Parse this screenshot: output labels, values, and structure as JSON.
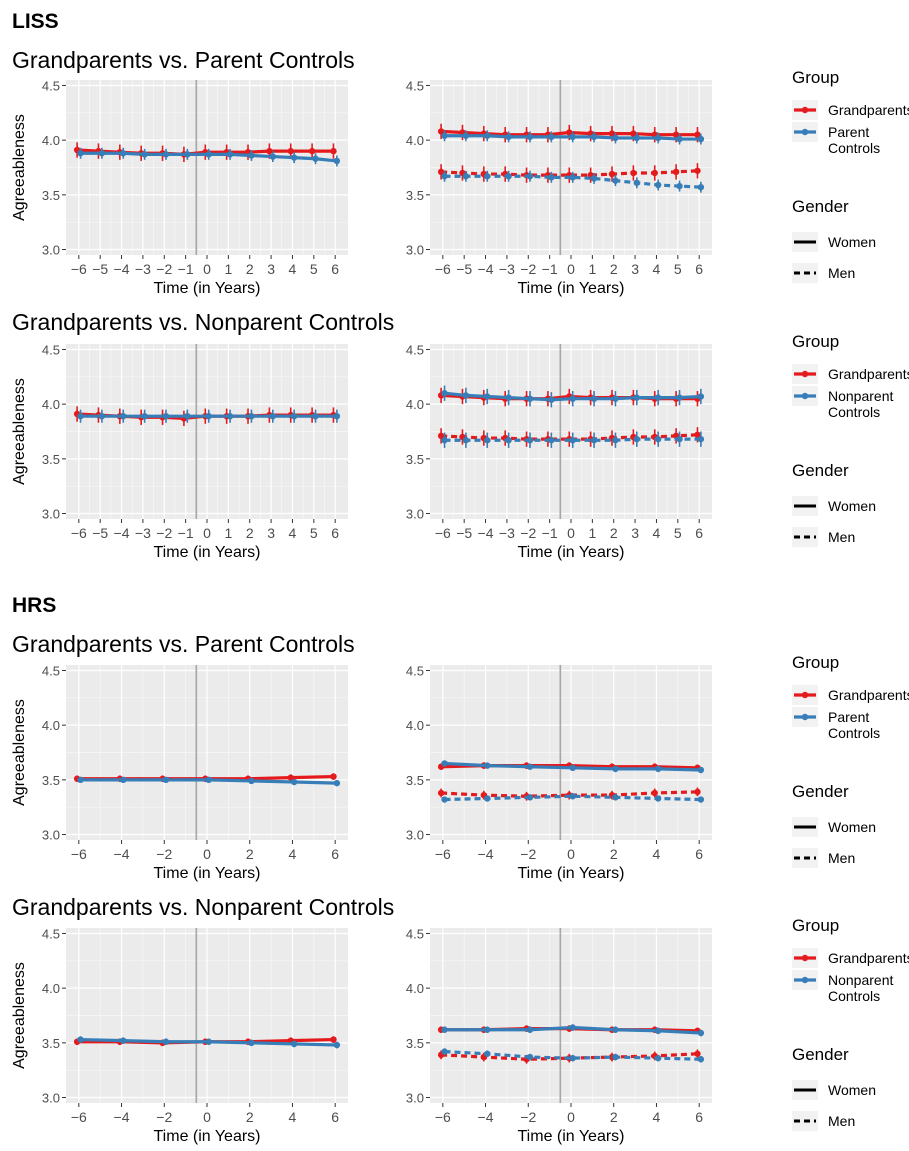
{
  "sections": [
    {
      "title": "LISS",
      "rows": [
        {
          "title": "Grandparents vs. Parent Controls",
          "legend": {
            "group_title": "Group",
            "group_items": [
              {
                "label_lines": [
                  "Grandparents"
                ],
                "color": "#E41A1C"
              },
              {
                "label_lines": [
                  "Parent",
                  "Controls"
                ],
                "color": "#377EB8"
              }
            ],
            "gender_title": "Gender",
            "gender_items": [
              {
                "label": "Women",
                "style": "solid"
              },
              {
                "label": "Men",
                "style": "dashed"
              }
            ]
          }
        },
        {
          "title": "Grandparents vs. Nonparent Controls",
          "legend": {
            "group_title": "Group",
            "group_items": [
              {
                "label_lines": [
                  "Grandparents"
                ],
                "color": "#E41A1C"
              },
              {
                "label_lines": [
                  "Nonparent",
                  "Controls"
                ],
                "color": "#377EB8"
              }
            ],
            "gender_title": "Gender",
            "gender_items": [
              {
                "label": "Women",
                "style": "solid"
              },
              {
                "label": "Men",
                "style": "dashed"
              }
            ]
          }
        }
      ]
    },
    {
      "title": "HRS",
      "rows": [
        {
          "title": "Grandparents vs. Parent Controls",
          "legend": {
            "group_title": "Group",
            "group_items": [
              {
                "label_lines": [
                  "Grandparents"
                ],
                "color": "#E41A1C"
              },
              {
                "label_lines": [
                  "Parent",
                  "Controls"
                ],
                "color": "#377EB8"
              }
            ],
            "gender_title": "Gender",
            "gender_items": [
              {
                "label": "Women",
                "style": "solid"
              },
              {
                "label": "Men",
                "style": "dashed"
              }
            ]
          }
        },
        {
          "title": "Grandparents vs. Nonparent Controls",
          "legend": {
            "group_title": "Group",
            "group_items": [
              {
                "label_lines": [
                  "Grandparents"
                ],
                "color": "#E41A1C"
              },
              {
                "label_lines": [
                  "Nonparent",
                  "Controls"
                ],
                "color": "#377EB8"
              }
            ],
            "gender_title": "Gender",
            "gender_items": [
              {
                "label": "Women",
                "style": "solid"
              },
              {
                "label": "Men",
                "style": "dashed"
              }
            ]
          }
        }
      ]
    }
  ],
  "colors": {
    "grandparents": "#E41A1C",
    "controls": "#377EB8",
    "panel_bg": "#EBEBEB",
    "grid": "#FFFFFF"
  },
  "chart_data": [
    {
      "type": "line",
      "section": "LISS",
      "row": "Grandparents vs. Parent Controls",
      "panel": "overall",
      "xlabel": "Time (in Years)",
      "ylabel": "Agreeableness",
      "ylim": [
        2.95,
        4.55
      ],
      "yticks": [
        3.0,
        3.5,
        4.0,
        4.5
      ],
      "x": [
        -6,
        -5,
        -4,
        -3,
        -2,
        -1,
        0,
        1,
        2,
        3,
        4,
        5,
        6
      ],
      "xticks": [
        -6,
        -5,
        -4,
        -3,
        -2,
        -1,
        0,
        1,
        2,
        3,
        4,
        5,
        6
      ],
      "event_line": true,
      "series": [
        {
          "name": "Grandparents",
          "style": "solid",
          "color": "#E41A1C",
          "values": [
            3.91,
            3.9,
            3.89,
            3.88,
            3.88,
            3.87,
            3.89,
            3.89,
            3.89,
            3.9,
            3.9,
            3.9,
            3.9
          ],
          "err": 0.07
        },
        {
          "name": "Parent Controls",
          "style": "solid",
          "color": "#377EB8",
          "values": [
            3.88,
            3.88,
            3.88,
            3.87,
            3.87,
            3.87,
            3.87,
            3.87,
            3.86,
            3.85,
            3.84,
            3.83,
            3.81
          ],
          "err": 0.05
        }
      ]
    },
    {
      "type": "line",
      "section": "LISS",
      "row": "Grandparents vs. Parent Controls",
      "panel": "by-gender",
      "xlabel": "Time (in Years)",
      "ylabel": "",
      "ylim": [
        2.95,
        4.55
      ],
      "yticks": [
        3.0,
        3.5,
        4.0,
        4.5
      ],
      "x": [
        -6,
        -5,
        -4,
        -3,
        -2,
        -1,
        0,
        1,
        2,
        3,
        4,
        5,
        6
      ],
      "xticks": [
        -6,
        -5,
        -4,
        -3,
        -2,
        -1,
        0,
        1,
        2,
        3,
        4,
        5,
        6
      ],
      "event_line": true,
      "series": [
        {
          "name": "Grandparents",
          "gender": "Women",
          "style": "solid",
          "color": "#E41A1C",
          "values": [
            4.08,
            4.07,
            4.06,
            4.05,
            4.05,
            4.05,
            4.07,
            4.06,
            4.06,
            4.06,
            4.05,
            4.05,
            4.05
          ],
          "err": 0.07
        },
        {
          "name": "Parent Controls",
          "gender": "Women",
          "style": "solid",
          "color": "#377EB8",
          "values": [
            4.04,
            4.04,
            4.04,
            4.03,
            4.03,
            4.03,
            4.03,
            4.03,
            4.02,
            4.02,
            4.02,
            4.01,
            4.01
          ],
          "err": 0.05
        },
        {
          "name": "Grandparents",
          "gender": "Men",
          "style": "dashed",
          "color": "#E41A1C",
          "values": [
            3.71,
            3.7,
            3.69,
            3.69,
            3.68,
            3.68,
            3.68,
            3.68,
            3.69,
            3.7,
            3.7,
            3.71,
            3.72
          ],
          "err": 0.07
        },
        {
          "name": "Parent Controls",
          "gender": "Men",
          "style": "dashed",
          "color": "#377EB8",
          "values": [
            3.67,
            3.67,
            3.67,
            3.67,
            3.67,
            3.66,
            3.66,
            3.65,
            3.63,
            3.61,
            3.59,
            3.58,
            3.57
          ],
          "err": 0.05
        }
      ]
    },
    {
      "type": "line",
      "section": "LISS",
      "row": "Grandparents vs. Nonparent Controls",
      "panel": "overall",
      "xlabel": "Time (in Years)",
      "ylabel": "Agreeableness",
      "ylim": [
        2.95,
        4.55
      ],
      "yticks": [
        3.0,
        3.5,
        4.0,
        4.5
      ],
      "x": [
        -6,
        -5,
        -4,
        -3,
        -2,
        -1,
        0,
        1,
        2,
        3,
        4,
        5,
        6
      ],
      "xticks": [
        -6,
        -5,
        -4,
        -3,
        -2,
        -1,
        0,
        1,
        2,
        3,
        4,
        5,
        6
      ],
      "event_line": true,
      "series": [
        {
          "name": "Grandparents",
          "style": "solid",
          "color": "#E41A1C",
          "values": [
            3.91,
            3.9,
            3.89,
            3.88,
            3.88,
            3.87,
            3.89,
            3.89,
            3.89,
            3.9,
            3.9,
            3.9,
            3.9
          ],
          "err": 0.07
        },
        {
          "name": "Nonparent Controls",
          "style": "solid",
          "color": "#377EB8",
          "values": [
            3.89,
            3.89,
            3.89,
            3.89,
            3.89,
            3.89,
            3.89,
            3.89,
            3.89,
            3.89,
            3.89,
            3.89,
            3.89
          ],
          "err": 0.06
        }
      ]
    },
    {
      "type": "line",
      "section": "LISS",
      "row": "Grandparents vs. Nonparent Controls",
      "panel": "by-gender",
      "xlabel": "Time (in Years)",
      "ylabel": "",
      "ylim": [
        2.95,
        4.55
      ],
      "yticks": [
        3.0,
        3.5,
        4.0,
        4.5
      ],
      "x": [
        -6,
        -5,
        -4,
        -3,
        -2,
        -1,
        0,
        1,
        2,
        3,
        4,
        5,
        6
      ],
      "xticks": [
        -6,
        -5,
        -4,
        -3,
        -2,
        -1,
        0,
        1,
        2,
        3,
        4,
        5,
        6
      ],
      "event_line": true,
      "series": [
        {
          "name": "Grandparents",
          "gender": "Women",
          "style": "solid",
          "color": "#E41A1C",
          "values": [
            4.08,
            4.07,
            4.06,
            4.05,
            4.05,
            4.05,
            4.07,
            4.06,
            4.06,
            4.06,
            4.05,
            4.05,
            4.05
          ],
          "err": 0.07
        },
        {
          "name": "Nonparent Controls",
          "gender": "Women",
          "style": "solid",
          "color": "#377EB8",
          "values": [
            4.1,
            4.08,
            4.07,
            4.06,
            4.05,
            4.04,
            4.05,
            4.05,
            4.05,
            4.06,
            4.06,
            4.06,
            4.07
          ],
          "err": 0.07
        },
        {
          "name": "Grandparents",
          "gender": "Men",
          "style": "dashed",
          "color": "#E41A1C",
          "values": [
            3.71,
            3.7,
            3.69,
            3.69,
            3.68,
            3.68,
            3.68,
            3.68,
            3.69,
            3.7,
            3.7,
            3.71,
            3.72
          ],
          "err": 0.07
        },
        {
          "name": "Nonparent Controls",
          "gender": "Men",
          "style": "dashed",
          "color": "#377EB8",
          "values": [
            3.67,
            3.67,
            3.67,
            3.67,
            3.67,
            3.67,
            3.67,
            3.67,
            3.67,
            3.68,
            3.68,
            3.68,
            3.68
          ],
          "err": 0.07
        }
      ]
    },
    {
      "type": "line",
      "section": "HRS",
      "row": "Grandparents vs. Parent Controls",
      "panel": "overall",
      "xlabel": "Time (in Years)",
      "ylabel": "Agreeableness",
      "ylim": [
        2.95,
        4.55
      ],
      "yticks": [
        3.0,
        3.5,
        4.0,
        4.5
      ],
      "x": [
        -6,
        -4,
        -2,
        0,
        2,
        4,
        6
      ],
      "xticks": [
        -6,
        -4,
        -2,
        0,
        2,
        4,
        6
      ],
      "event_line": true,
      "series": [
        {
          "name": "Grandparents",
          "style": "solid",
          "color": "#E41A1C",
          "values": [
            3.51,
            3.51,
            3.51,
            3.51,
            3.51,
            3.52,
            3.53
          ],
          "err": 0.03
        },
        {
          "name": "Parent Controls",
          "style": "solid",
          "color": "#377EB8",
          "values": [
            3.5,
            3.5,
            3.5,
            3.5,
            3.49,
            3.48,
            3.47
          ],
          "err": 0.02
        }
      ]
    },
    {
      "type": "line",
      "section": "HRS",
      "row": "Grandparents vs. Parent Controls",
      "panel": "by-gender",
      "xlabel": "Time (in Years)",
      "ylabel": "",
      "ylim": [
        2.95,
        4.55
      ],
      "yticks": [
        3.0,
        3.5,
        4.0,
        4.5
      ],
      "x": [
        -6,
        -4,
        -2,
        0,
        2,
        4,
        6
      ],
      "xticks": [
        -6,
        -4,
        -2,
        0,
        2,
        4,
        6
      ],
      "event_line": true,
      "series": [
        {
          "name": "Grandparents",
          "gender": "Women",
          "style": "solid",
          "color": "#E41A1C",
          "values": [
            3.62,
            3.63,
            3.63,
            3.63,
            3.62,
            3.62,
            3.61
          ],
          "err": 0.03
        },
        {
          "name": "Parent Controls",
          "gender": "Women",
          "style": "solid",
          "color": "#377EB8",
          "values": [
            3.65,
            3.63,
            3.62,
            3.61,
            3.6,
            3.6,
            3.59
          ],
          "err": 0.02
        },
        {
          "name": "Grandparents",
          "gender": "Men",
          "style": "dashed",
          "color": "#E41A1C",
          "values": [
            3.38,
            3.36,
            3.35,
            3.36,
            3.36,
            3.38,
            3.39
          ],
          "err": 0.04
        },
        {
          "name": "Parent Controls",
          "gender": "Men",
          "style": "dashed",
          "color": "#377EB8",
          "values": [
            3.32,
            3.33,
            3.34,
            3.35,
            3.34,
            3.33,
            3.32
          ],
          "err": 0.02
        }
      ]
    },
    {
      "type": "line",
      "section": "HRS",
      "row": "Grandparents vs. Nonparent Controls",
      "panel": "overall",
      "xlabel": "Time (in Years)",
      "ylabel": "Agreeableness",
      "ylim": [
        2.95,
        4.55
      ],
      "yticks": [
        3.0,
        3.5,
        4.0,
        4.5
      ],
      "x": [
        -6,
        -4,
        -2,
        0,
        2,
        4,
        6
      ],
      "xticks": [
        -6,
        -4,
        -2,
        0,
        2,
        4,
        6
      ],
      "event_line": true,
      "series": [
        {
          "name": "Grandparents",
          "style": "solid",
          "color": "#E41A1C",
          "values": [
            3.51,
            3.51,
            3.5,
            3.51,
            3.51,
            3.52,
            3.53
          ],
          "err": 0.03
        },
        {
          "name": "Nonparent Controls",
          "style": "solid",
          "color": "#377EB8",
          "values": [
            3.53,
            3.52,
            3.51,
            3.51,
            3.5,
            3.49,
            3.48
          ],
          "err": 0.03
        }
      ]
    },
    {
      "type": "line",
      "section": "HRS",
      "row": "Grandparents vs. Nonparent Controls",
      "panel": "by-gender",
      "xlabel": "Time (in Years)",
      "ylabel": "",
      "ylim": [
        2.95,
        4.55
      ],
      "yticks": [
        3.0,
        3.5,
        4.0,
        4.5
      ],
      "x": [
        -6,
        -4,
        -2,
        0,
        2,
        4,
        6
      ],
      "xticks": [
        -6,
        -4,
        -2,
        0,
        2,
        4,
        6
      ],
      "event_line": true,
      "series": [
        {
          "name": "Grandparents",
          "gender": "Women",
          "style": "solid",
          "color": "#E41A1C",
          "values": [
            3.62,
            3.62,
            3.63,
            3.63,
            3.62,
            3.62,
            3.61
          ],
          "err": 0.03
        },
        {
          "name": "Nonparent Controls",
          "gender": "Women",
          "style": "solid",
          "color": "#377EB8",
          "values": [
            3.62,
            3.62,
            3.62,
            3.64,
            3.62,
            3.61,
            3.59
          ],
          "err": 0.03
        },
        {
          "name": "Grandparents",
          "gender": "Men",
          "style": "dashed",
          "color": "#E41A1C",
          "values": [
            3.39,
            3.37,
            3.35,
            3.36,
            3.37,
            3.38,
            3.4
          ],
          "err": 0.04
        },
        {
          "name": "Nonparent Controls",
          "gender": "Men",
          "style": "dashed",
          "color": "#377EB8",
          "values": [
            3.42,
            3.4,
            3.37,
            3.36,
            3.37,
            3.36,
            3.35
          ],
          "err": 0.03
        }
      ]
    }
  ]
}
